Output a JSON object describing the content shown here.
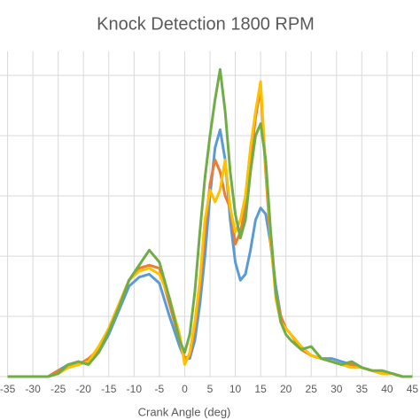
{
  "chart_data": {
    "type": "line",
    "title": "Knock Detection 1800 RPM",
    "x_label": "Crank Angle (deg)",
    "x": [
      -35,
      -30,
      -27,
      -25,
      -23,
      -21,
      -19,
      -17,
      -15,
      -13,
      -11,
      -9,
      -7,
      -5,
      -3,
      -1,
      0,
      1,
      2,
      3,
      4,
      5,
      6,
      7,
      8,
      9,
      10,
      11,
      12,
      13,
      14,
      15,
      16,
      17,
      18,
      19,
      20,
      21,
      23,
      25,
      27,
      29,
      31,
      33,
      35,
      37,
      39,
      41,
      43,
      45
    ],
    "series": [
      {
        "color": "#5b9bd5",
        "values": [
          0,
          0,
          0,
          0.1,
          0.2,
          0.2,
          0.25,
          0.4,
          0.7,
          1.1,
          1.5,
          1.65,
          1.7,
          1.55,
          1.0,
          0.5,
          0.3,
          0.3,
          0.6,
          1.2,
          2.0,
          3.0,
          3.8,
          4.1,
          3.6,
          2.6,
          1.9,
          1.6,
          1.7,
          2.1,
          2.6,
          2.8,
          2.7,
          2.2,
          1.5,
          1.0,
          0.8,
          0.7,
          0.5,
          0.35,
          0.3,
          0.3,
          0.25,
          0.2,
          0.15,
          0.1,
          0.05,
          0.05,
          0,
          0
        ]
      },
      {
        "color": "#ed7d31",
        "values": [
          0,
          0,
          0,
          0.1,
          0.15,
          0.2,
          0.3,
          0.45,
          0.8,
          1.2,
          1.6,
          1.8,
          1.85,
          1.8,
          1.2,
          0.6,
          0.3,
          0.35,
          0.8,
          1.5,
          2.4,
          3.2,
          3.6,
          3.4,
          3.0,
          2.8,
          2.2,
          2.4,
          2.8,
          3.6,
          4.3,
          4.8,
          3.4,
          2.2,
          1.4,
          1.0,
          0.8,
          0.7,
          0.45,
          0.35,
          0.3,
          0.25,
          0.2,
          0.2,
          0.15,
          0.1,
          0.05,
          0.05,
          0,
          0
        ]
      },
      {
        "color": "#ffc000",
        "values": [
          0,
          0,
          0,
          0.05,
          0.15,
          0.2,
          0.25,
          0.5,
          0.8,
          1.2,
          1.6,
          1.75,
          1.8,
          1.7,
          1.3,
          0.7,
          0.2,
          0.4,
          0.9,
          1.6,
          2.6,
          3.1,
          2.9,
          3.1,
          3.6,
          2.8,
          2.4,
          2.6,
          3.0,
          3.8,
          4.4,
          4.9,
          3.5,
          2.3,
          1.3,
          0.9,
          0.8,
          0.7,
          0.5,
          0.35,
          0.3,
          0.25,
          0.2,
          0.15,
          0.15,
          0.1,
          0.05,
          0.05,
          0,
          0
        ]
      },
      {
        "color": "#70ad47",
        "values": [
          0,
          0,
          0,
          0.05,
          0.2,
          0.25,
          0.2,
          0.4,
          0.75,
          1.15,
          1.6,
          1.85,
          2.1,
          1.9,
          1.3,
          0.6,
          0.4,
          0.7,
          1.4,
          2.4,
          3.3,
          4.0,
          4.6,
          5.1,
          4.4,
          3.4,
          2.7,
          2.3,
          2.6,
          3.4,
          4.0,
          4.2,
          3.6,
          2.4,
          1.4,
          0.9,
          0.7,
          0.6,
          0.45,
          0.5,
          0.3,
          0.25,
          0.2,
          0.25,
          0.15,
          0.1,
          0.1,
          0.05,
          0,
          0
        ]
      }
    ],
    "xlim": [
      -36.5,
      46.5
    ],
    "xticks": [
      -35,
      -30,
      -25,
      -20,
      -15,
      -10,
      -5,
      0,
      5,
      10,
      15,
      20,
      25,
      30,
      35,
      40,
      45
    ],
    "ylim": [
      0,
      5.4
    ],
    "yticks": [
      0,
      1,
      2,
      3,
      4,
      5
    ],
    "ytick_labels": false,
    "grid": true
  }
}
